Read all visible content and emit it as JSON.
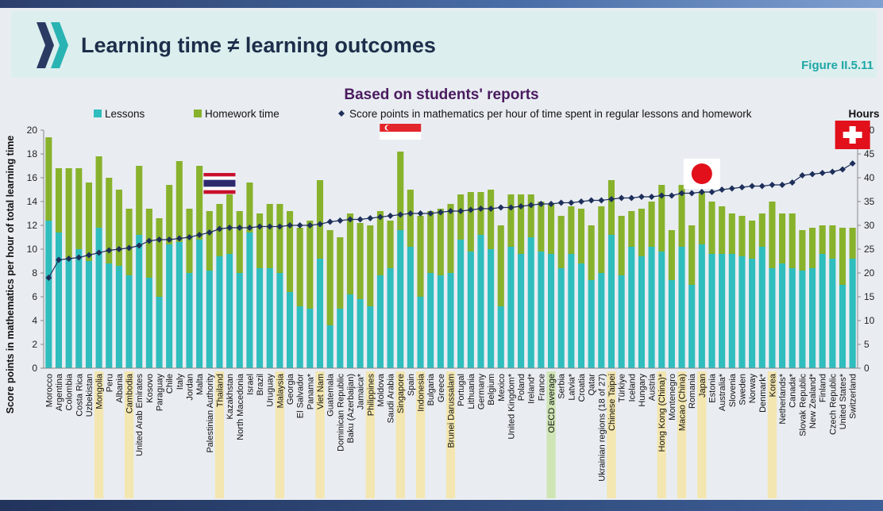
{
  "header": {
    "title": "Learning time ≠ learning outcomes",
    "figure_label": "Figure II.5.11",
    "logo_icon": "double-chevron-logo-icon"
  },
  "chart_data": {
    "type": "bar",
    "title": "Based on students' reports",
    "ylabel": "Score points in mathematics per hour of total learning time",
    "y2label": "Hours",
    "ylim": [
      0,
      20
    ],
    "yticks": [
      0,
      2,
      4,
      6,
      8,
      10,
      12,
      14,
      16,
      18,
      20
    ],
    "y2lim": [
      0,
      50
    ],
    "y2ticks": [
      0,
      5,
      10,
      15,
      20,
      25,
      30,
      35,
      40,
      45,
      50
    ],
    "stacked": true,
    "legend": [
      "Lessons",
      "Homework time",
      "Score points in mathematics per hour of time spent in regular lessons and homework"
    ],
    "legend_position": "top",
    "colors": {
      "lessons": "#2fbdbd",
      "homework": "#88b22c",
      "score": "#1d2f5a",
      "highlight": "#f3e6b0",
      "oecd_highlight": "#cfe5b5"
    },
    "categories": [
      "Morocco",
      "Argentina",
      "Colombia",
      "Costa Rica",
      "Uzbekistan",
      "Mongolia",
      "Peru",
      "Albania",
      "Cambodia",
      "United Arab Emirates",
      "Kosovo",
      "Paraguay",
      "Chile",
      "Italy",
      "Jordan",
      "Malta",
      "Palestinian Authority",
      "Thailand",
      "Kazakhstan",
      "North Macedonia",
      "Israel",
      "Brazil",
      "Uruguay",
      "Malaysia",
      "Georgia",
      "El Salvador",
      "Panama*",
      "Viet Nam",
      "Guatemala",
      "Dominican Republic",
      "Baku (Azerbaijan)",
      "Jamaica*",
      "Philippines",
      "Moldova",
      "Saudi Arabia",
      "Singapore",
      "Spain",
      "Indonesia",
      "Bulgaria",
      "Greece",
      "Brunei Darussalam",
      "Portugal",
      "Lithuania",
      "Germany",
      "Belgium",
      "Mexico",
      "United Kingdom*",
      "Poland",
      "Ireland*",
      "France",
      "OECD average",
      "Serbia",
      "Latvia*",
      "Croatia",
      "Qatar",
      "Ukrainian regions (18 of 27)",
      "Chinese Taipei",
      "Türkiye",
      "Iceland",
      "Hungary",
      "Austria",
      "Hong Kong (China)*",
      "Montenegro",
      "Macao (China)",
      "Romania",
      "Japan",
      "Estonia",
      "Australia*",
      "Slovenia",
      "Sweden",
      "Norway",
      "Denmark*",
      "Korea",
      "Netherlands*",
      "Canada*",
      "Slovak Republic",
      "New Zealand*",
      "Finland",
      "Czech Republic",
      "United States*",
      "Switzerland"
    ],
    "highlighted": [
      "Mongolia",
      "Cambodia",
      "Thailand",
      "Malaysia",
      "Viet Nam",
      "Philippines",
      "Singapore",
      "Indonesia",
      "Brunei Darussalam",
      "Chinese Taipei",
      "Hong Kong (China)*",
      "Macao (China)",
      "Japan",
      "Korea"
    ],
    "average_category": "OECD average",
    "flag_icons": [
      {
        "category": "Thailand",
        "icon": "thailand-flag-icon"
      },
      {
        "category": "Singapore",
        "icon": "singapore-flag-icon"
      },
      {
        "category": "Japan",
        "icon": "japan-flag-icon"
      },
      {
        "category": "Switzerland",
        "icon": "switzerland-flag-icon"
      }
    ],
    "series": [
      {
        "name": "Lessons",
        "axis": "right",
        "values": [
          31,
          28.5,
          23,
          25,
          22.5,
          29.5,
          22,
          21.5,
          19.5,
          28,
          19,
          15,
          26,
          26.5,
          20,
          27,
          20.5,
          23.5,
          24,
          20,
          28.5,
          21,
          21,
          20,
          16,
          13,
          12.5,
          23,
          9,
          12.5,
          15.5,
          14.5,
          13,
          19.5,
          21,
          29,
          25.5,
          15,
          20,
          19.5,
          20,
          27,
          24.5,
          28,
          25,
          13,
          25.5,
          24,
          27.5,
          24.5,
          24,
          21,
          24,
          22,
          18.5,
          20,
          28,
          19.5,
          25.5,
          23.5,
          25.5,
          24.5,
          18.5,
          25.5,
          17.5,
          26,
          24,
          24,
          24,
          23.5,
          23,
          25.5,
          21,
          22,
          21,
          20.5,
          21,
          24,
          23,
          17.5,
          23
        ]
      },
      {
        "name": "Homework time",
        "axis": "right",
        "values": [
          17.5,
          13.5,
          19,
          17,
          16.5,
          15,
          18,
          16,
          14,
          14.5,
          14.5,
          16.5,
          12.5,
          17,
          13.5,
          15.5,
          12.5,
          11,
          12.5,
          13,
          10.5,
          11.5,
          13.5,
          14.5,
          17,
          16.5,
          18.5,
          16.5,
          20,
          15,
          17,
          16,
          17,
          13.5,
          10,
          16.5,
          12,
          17,
          13,
          14,
          14.5,
          9.5,
          12.5,
          9,
          12.5,
          17,
          11,
          12.5,
          9,
          10.5,
          10.5,
          11,
          10,
          11.5,
          11.5,
          14,
          11.5,
          12.5,
          7.5,
          10,
          9.5,
          14,
          10.5,
          13,
          12.5,
          11,
          11,
          10,
          8.5,
          8.5,
          8,
          7,
          14,
          10.5,
          11.5,
          8.5,
          8.5,
          6,
          7,
          12,
          6.5
        ]
      },
      {
        "name": "Score points in mathematics per hour of time spent in regular lessons and homework",
        "axis": "left",
        "values": [
          7.6,
          9.1,
          9.2,
          9.3,
          9.5,
          9.7,
          9.9,
          10.0,
          10.1,
          10.3,
          10.7,
          10.8,
          10.8,
          10.9,
          11.0,
          11.2,
          11.4,
          11.7,
          11.8,
          11.8,
          11.8,
          11.9,
          11.9,
          11.9,
          12.0,
          12.0,
          12.0,
          12.1,
          12.3,
          12.4,
          12.5,
          12.5,
          12.6,
          12.7,
          12.8,
          12.9,
          13.0,
          13.0,
          13.0,
          13.1,
          13.2,
          13.2,
          13.3,
          13.4,
          13.4,
          13.5,
          13.5,
          13.6,
          13.7,
          13.8,
          13.8,
          13.9,
          13.9,
          14.0,
          14.1,
          14.1,
          14.2,
          14.3,
          14.3,
          14.4,
          14.4,
          14.5,
          14.5,
          14.7,
          14.7,
          14.8,
          14.8,
          15.0,
          15.1,
          15.2,
          15.3,
          15.3,
          15.4,
          15.4,
          15.6,
          16.2,
          16.3,
          16.4,
          16.5,
          16.7,
          17.2
        ]
      }
    ]
  }
}
